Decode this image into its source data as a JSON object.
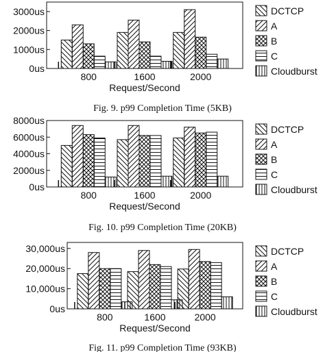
{
  "legend": [
    "DCTCP",
    "A",
    "B",
    "C",
    "Cloudburst"
  ],
  "chart_data": [
    {
      "type": "bar",
      "title": "",
      "xlabel": "Request/Second",
      "ylabel": "",
      "caption": "Fig. 9.   p99 Completion Time (5KB)",
      "categories": [
        "800",
        "1600",
        "2000"
      ],
      "ylim": [
        0,
        3500
      ],
      "yticks": [
        0,
        1000,
        2000,
        3000
      ],
      "ytick_labels": [
        "0us",
        "1000us",
        "2000us",
        "3000us"
      ],
      "legend_position": "right",
      "grid": false,
      "series": [
        {
          "name": "DCTCP",
          "values": [
            1500,
            1900,
            1900
          ]
        },
        {
          "name": "A",
          "values": [
            2300,
            2550,
            3100
          ]
        },
        {
          "name": "B",
          "values": [
            1300,
            1400,
            1650
          ]
        },
        {
          "name": "C",
          "values": [
            650,
            650,
            750
          ]
        },
        {
          "name": "Cloudburst",
          "values": [
            350,
            380,
            500
          ]
        }
      ]
    },
    {
      "type": "bar",
      "title": "",
      "xlabel": "Request/Second",
      "ylabel": "",
      "caption": "Fig. 10.   p99 Completion Time (20KB)",
      "categories": [
        "800",
        "1600",
        "2000"
      ],
      "ylim": [
        0,
        8000
      ],
      "yticks": [
        0,
        2000,
        4000,
        6000,
        8000
      ],
      "ytick_labels": [
        "0us",
        "2000us",
        "4000us",
        "6000us",
        "8000us"
      ],
      "legend_position": "right",
      "grid": false,
      "series": [
        {
          "name": "DCTCP",
          "values": [
            5000,
            5700,
            5900
          ]
        },
        {
          "name": "A",
          "values": [
            7400,
            7400,
            7200
          ]
        },
        {
          "name": "B",
          "values": [
            6300,
            6200,
            6500
          ]
        },
        {
          "name": "C",
          "values": [
            5900,
            6200,
            6600
          ]
        },
        {
          "name": "Cloudburst",
          "values": [
            1200,
            1300,
            1300
          ]
        }
      ]
    },
    {
      "type": "bar",
      "title": "",
      "xlabel": "Request/Second",
      "ylabel": "",
      "caption": "Fig. 11.   p99 Completion Time (93KB)",
      "categories": [
        "800",
        "1600",
        "2000"
      ],
      "ylim": [
        0,
        33000
      ],
      "yticks": [
        0,
        10000,
        20000,
        30000
      ],
      "ytick_labels": [
        "0us",
        "10,000us",
        "20,000us",
        "30,000us"
      ],
      "legend_position": "right",
      "grid": false,
      "series": [
        {
          "name": "DCTCP",
          "values": [
            17500,
            18500,
            19800
          ]
        },
        {
          "name": "A",
          "values": [
            28000,
            29000,
            29500
          ]
        },
        {
          "name": "B",
          "values": [
            20000,
            22000,
            23500
          ]
        },
        {
          "name": "C",
          "values": [
            20000,
            21000,
            23000
          ]
        },
        {
          "name": "Cloudburst",
          "values": [
            3500,
            4500,
            6000
          ]
        }
      ]
    }
  ]
}
